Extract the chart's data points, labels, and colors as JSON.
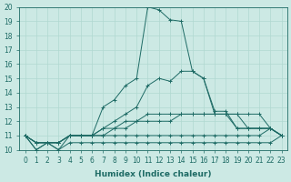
{
  "xlabel": "Humidex (Indice chaleur)",
  "xlim": [
    -0.5,
    23.5
  ],
  "ylim": [
    10,
    20
  ],
  "yticks": [
    10,
    11,
    12,
    13,
    14,
    15,
    16,
    17,
    18,
    19,
    20
  ],
  "xticks": [
    0,
    1,
    2,
    3,
    4,
    5,
    6,
    7,
    8,
    9,
    10,
    11,
    12,
    13,
    14,
    15,
    16,
    17,
    18,
    19,
    20,
    21,
    22,
    23
  ],
  "bg_color": "#cce9e4",
  "line_color": "#1e6b65",
  "grid_color": "#b0d8d0",
  "series": [
    [
      11.0,
      10.0,
      10.5,
      10.0,
      10.5,
      10.5,
      10.5,
      10.5,
      10.5,
      10.5,
      10.5,
      10.5,
      10.5,
      10.5,
      10.5,
      10.5,
      10.5,
      10.5,
      10.5,
      10.5,
      10.5,
      10.5,
      10.5,
      11.0
    ],
    [
      11.0,
      10.5,
      10.5,
      10.5,
      11.0,
      11.0,
      11.0,
      11.0,
      11.0,
      11.0,
      11.0,
      11.0,
      11.0,
      11.0,
      11.0,
      11.0,
      11.0,
      11.0,
      11.0,
      11.0,
      11.0,
      11.0,
      11.5,
      11.0
    ],
    [
      11.0,
      10.5,
      10.5,
      10.5,
      11.0,
      11.0,
      11.0,
      11.0,
      11.5,
      11.5,
      12.0,
      12.0,
      12.0,
      12.0,
      12.5,
      12.5,
      12.5,
      12.5,
      12.5,
      12.5,
      11.5,
      11.5,
      11.5,
      11.0
    ],
    [
      11.0,
      10.5,
      10.5,
      10.5,
      11.0,
      11.0,
      11.0,
      11.5,
      11.5,
      12.0,
      12.0,
      12.5,
      12.5,
      12.5,
      12.5,
      12.5,
      12.5,
      12.5,
      12.5,
      12.5,
      12.5,
      12.5,
      11.5,
      11.0
    ],
    [
      11.0,
      10.5,
      10.5,
      10.5,
      11.0,
      11.0,
      11.0,
      11.5,
      12.0,
      12.5,
      13.0,
      14.5,
      15.0,
      14.8,
      15.5,
      15.5,
      15.0,
      12.5,
      12.5,
      11.5,
      11.5,
      11.5,
      11.5,
      11.0
    ],
    [
      11.0,
      10.0,
      10.5,
      10.0,
      11.0,
      11.0,
      11.0,
      13.0,
      13.5,
      14.5,
      15.0,
      20.0,
      19.8,
      19.1,
      19.0,
      15.5,
      15.0,
      12.7,
      12.7,
      11.5,
      11.5,
      11.5,
      11.5,
      11.0
    ]
  ],
  "tick_fontsize": 5.5,
  "xlabel_fontsize": 6.5,
  "marker": "+",
  "markersize": 2.5,
  "linewidth": 0.7
}
